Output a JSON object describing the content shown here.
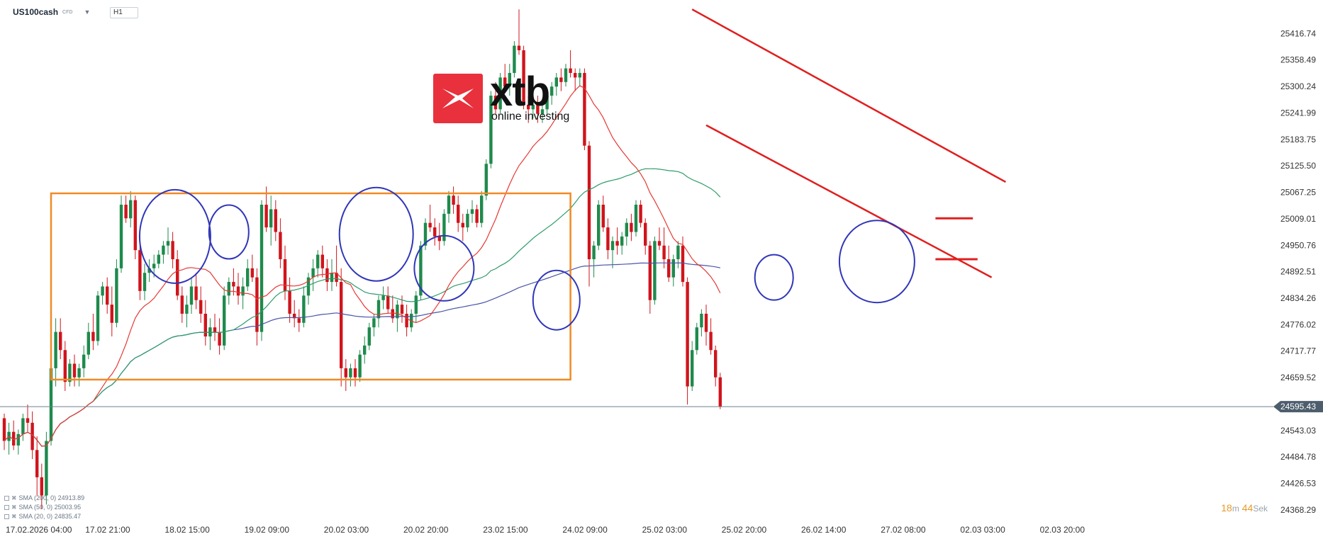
{
  "instrument": {
    "symbol": "US100cash",
    "type": "CFD",
    "timeframe": "H1"
  },
  "logo": {
    "word": "xtb",
    "tagline": "online investing"
  },
  "timer": {
    "minutes": "18",
    "min_unit": "m",
    "seconds": "44",
    "sec_unit": "Sek"
  },
  "indicators": [
    {
      "label": "SMA (200, 0) 24913.89",
      "color": "#4a55a8"
    },
    {
      "label": "SMA (50, 0) 25003.95",
      "color": "#2e9c6a"
    },
    {
      "label": "SMA (20, 0) 24835.47",
      "color": "#e53935"
    }
  ],
  "colors": {
    "up": "#1e8a4c",
    "down": "#d0141c",
    "channel": "#e01f1f",
    "box": "#f08a24",
    "circles": "#3036b8"
  },
  "chart_data": {
    "type": "candlestick",
    "ylim": [
      24340,
      25475
    ],
    "y_ticks": [
      "25416.74",
      "25358.49",
      "25300.24",
      "25241.99",
      "25183.75",
      "25125.50",
      "25067.25",
      "25009.01",
      "24950.76",
      "24892.51",
      "24834.26",
      "24776.02",
      "24717.77",
      "24659.52",
      "24543.03",
      "24484.78",
      "24426.53",
      "24368.29"
    ],
    "x_ticks": [
      "17.02.2026  04:00",
      "17.02  21:00",
      "18.02  15:00",
      "19.02  09:00",
      "20.02  03:00",
      "20.02  20:00",
      "23.02  15:00",
      "24.02  09:00",
      "25.02  03:00",
      "25.02  20:00",
      "26.02  14:00",
      "27.02  08:00",
      "02.03  03:00",
      "02.03  20:00"
    ],
    "x_tick_index": [
      0,
      17,
      34,
      51,
      68,
      85,
      102,
      119,
      136,
      153,
      170,
      187,
      204,
      221
    ],
    "current_price": {
      "label": "24595.43",
      "value": 24595.43
    },
    "candles": [
      [
        24570,
        24580,
        24500,
        24520
      ],
      [
        24520,
        24560,
        24490,
        24540
      ],
      [
        24540,
        24565,
        24500,
        24510
      ],
      [
        24510,
        24545,
        24490,
        24535
      ],
      [
        24535,
        24580,
        24520,
        24570
      ],
      [
        24570,
        24600,
        24540,
        24560
      ],
      [
        24560,
        24585,
        24480,
        24500
      ],
      [
        24500,
        24530,
        24400,
        24440
      ],
      [
        24440,
        24470,
        24370,
        24400
      ],
      [
        24400,
        24540,
        24380,
        24520
      ],
      [
        24520,
        24700,
        24510,
        24680
      ],
      [
        24680,
        24790,
        24640,
        24760
      ],
      [
        24760,
        24790,
        24700,
        24720
      ],
      [
        24720,
        24740,
        24630,
        24650
      ],
      [
        24650,
        24700,
        24640,
        24690
      ],
      [
        24690,
        24710,
        24640,
        24660
      ],
      [
        24660,
        24690,
        24640,
        24680
      ],
      [
        24680,
        24730,
        24660,
        24710
      ],
      [
        24710,
        24780,
        24700,
        24760
      ],
      [
        24760,
        24800,
        24720,
        24740
      ],
      [
        24740,
        24850,
        24730,
        24840
      ],
      [
        24840,
        24870,
        24820,
        24860
      ],
      [
        24860,
        24880,
        24800,
        24820
      ],
      [
        24820,
        24860,
        24750,
        24780
      ],
      [
        24780,
        24920,
        24770,
        24900
      ],
      [
        24900,
        25060,
        24890,
        25040
      ],
      [
        25040,
        25060,
        25000,
        25010
      ],
      [
        25010,
        25070,
        24990,
        25050
      ],
      [
        25050,
        25060,
        24920,
        24940
      ],
      [
        24940,
        24980,
        24830,
        24850
      ],
      [
        24850,
        24910,
        24830,
        24890
      ],
      [
        24890,
        24920,
        24870,
        24900
      ],
      [
        24900,
        24930,
        24880,
        24910
      ],
      [
        24910,
        24940,
        24900,
        24930
      ],
      [
        24930,
        24960,
        24910,
        24950
      ],
      [
        24950,
        24990,
        24930,
        24960
      ],
      [
        24960,
        24980,
        24900,
        24920
      ],
      [
        24920,
        24940,
        24830,
        24840
      ],
      [
        24840,
        24860,
        24780,
        24800
      ],
      [
        24800,
        24840,
        24770,
        24820
      ],
      [
        24820,
        24880,
        24800,
        24860
      ],
      [
        24860,
        24890,
        24810,
        24830
      ],
      [
        24830,
        24860,
        24780,
        24800
      ],
      [
        24800,
        24830,
        24730,
        24750
      ],
      [
        24750,
        24790,
        24720,
        24770
      ],
      [
        24770,
        24800,
        24740,
        24760
      ],
      [
        24760,
        24790,
        24710,
        24730
      ],
      [
        24730,
        24860,
        24720,
        24840
      ],
      [
        24840,
        24880,
        24820,
        24870
      ],
      [
        24870,
        24900,
        24840,
        24860
      ],
      [
        24860,
        24890,
        24820,
        24840
      ],
      [
        24840,
        24880,
        24810,
        24860
      ],
      [
        24860,
        24920,
        24850,
        24900
      ],
      [
        24900,
        24930,
        24870,
        24880
      ],
      [
        24880,
        24900,
        24730,
        24760
      ],
      [
        24760,
        25050,
        24740,
        25040
      ],
      [
        25040,
        25080,
        24980,
        24990
      ],
      [
        24990,
        25060,
        24950,
        25030
      ],
      [
        25030,
        25050,
        24960,
        24980
      ],
      [
        24980,
        25010,
        24900,
        24920
      ],
      [
        24920,
        24950,
        24830,
        24850
      ],
      [
        24850,
        24880,
        24780,
        24800
      ],
      [
        24800,
        24830,
        24770,
        24790
      ],
      [
        24790,
        24810,
        24760,
        24780
      ],
      [
        24780,
        24860,
        24770,
        24840
      ],
      [
        24840,
        24890,
        24820,
        24880
      ],
      [
        24880,
        24920,
        24850,
        24900
      ],
      [
        24900,
        24940,
        24880,
        24930
      ],
      [
        24930,
        24950,
        24880,
        24900
      ],
      [
        24900,
        24920,
        24850,
        24870
      ],
      [
        24870,
        24920,
        24850,
        24890
      ],
      [
        24890,
        24950,
        24860,
        24870
      ],
      [
        24870,
        24900,
        24640,
        24680
      ],
      [
        24680,
        24700,
        24630,
        24660
      ],
      [
        24660,
        24690,
        24640,
        24680
      ],
      [
        24680,
        24700,
        24640,
        24660
      ],
      [
        24660,
        24720,
        24650,
        24710
      ],
      [
        24710,
        24750,
        24690,
        24730
      ],
      [
        24730,
        24780,
        24720,
        24770
      ],
      [
        24770,
        24800,
        24750,
        24790
      ],
      [
        24790,
        24840,
        24770,
        24830
      ],
      [
        24830,
        24860,
        24810,
        24840
      ],
      [
        24840,
        24860,
        24800,
        24810
      ],
      [
        24810,
        24840,
        24780,
        24790
      ],
      [
        24790,
        24830,
        24760,
        24820
      ],
      [
        24820,
        24840,
        24780,
        24800
      ],
      [
        24800,
        24820,
        24750,
        24770
      ],
      [
        24770,
        24810,
        24760,
        24800
      ],
      [
        24800,
        24850,
        24780,
        24840
      ],
      [
        24840,
        24960,
        24830,
        24950
      ],
      [
        24950,
        25010,
        24940,
        25000
      ],
      [
        25000,
        25040,
        24980,
        24990
      ],
      [
        24990,
        25010,
        24950,
        24970
      ],
      [
        24970,
        25000,
        24940,
        24960
      ],
      [
        24960,
        25030,
        24950,
        25020
      ],
      [
        25020,
        25070,
        25000,
        25060
      ],
      [
        25060,
        25080,
        25020,
        25040
      ],
      [
        25040,
        25060,
        24980,
        25000
      ],
      [
        25000,
        25020,
        24960,
        24990
      ],
      [
        24990,
        25030,
        24980,
        25020
      ],
      [
        25020,
        25050,
        25000,
        25030
      ],
      [
        25030,
        25040,
        24990,
        25000
      ],
      [
        25000,
        25070,
        24990,
        25060
      ],
      [
        25060,
        25140,
        25050,
        25130
      ],
      [
        25130,
        25290,
        25120,
        25280
      ],
      [
        25280,
        25310,
        25240,
        25250
      ],
      [
        25250,
        25330,
        25240,
        25320
      ],
      [
        25320,
        25350,
        25290,
        25300
      ],
      [
        25300,
        25350,
        25280,
        25330
      ],
      [
        25330,
        25400,
        25320,
        25390
      ],
      [
        25390,
        25470,
        25370,
        25380
      ],
      [
        25380,
        25390,
        25250,
        25260
      ],
      [
        25260,
        25280,
        25220,
        25250
      ],
      [
        25250,
        25270,
        25230,
        25260
      ],
      [
        25260,
        25280,
        25220,
        25240
      ],
      [
        25240,
        25260,
        25220,
        25250
      ],
      [
        25250,
        25290,
        25240,
        25280
      ],
      [
        25280,
        25310,
        25260,
        25300
      ],
      [
        25300,
        25330,
        25280,
        25320
      ],
      [
        25320,
        25340,
        25290,
        25310
      ],
      [
        25310,
        25350,
        25300,
        25340
      ],
      [
        25340,
        25380,
        25320,
        25330
      ],
      [
        25330,
        25340,
        25290,
        25320
      ],
      [
        25320,
        25340,
        25300,
        25330
      ],
      [
        25330,
        25340,
        25160,
        25170
      ],
      [
        25170,
        25180,
        24860,
        24920
      ],
      [
        24920,
        24960,
        24880,
        24950
      ],
      [
        24950,
        25050,
        24940,
        25040
      ],
      [
        25040,
        25060,
        24980,
        24990
      ],
      [
        24990,
        25010,
        24920,
        24940
      ],
      [
        24940,
        24970,
        24900,
        24960
      ],
      [
        24960,
        24990,
        24930,
        24950
      ],
      [
        24950,
        24980,
        24930,
        24970
      ],
      [
        24970,
        25010,
        24950,
        25000
      ],
      [
        25000,
        25020,
        24960,
        24980
      ],
      [
        24980,
        25050,
        24970,
        25040
      ],
      [
        25040,
        25050,
        24990,
        25000
      ],
      [
        25000,
        25010,
        24930,
        24950
      ],
      [
        24950,
        24960,
        24800,
        24830
      ],
      [
        24830,
        24970,
        24820,
        24960
      ],
      [
        24960,
        24990,
        24940,
        24950
      ],
      [
        24950,
        24990,
        24900,
        24920
      ],
      [
        24920,
        24950,
        24870,
        24880
      ],
      [
        24880,
        24930,
        24860,
        24920
      ],
      [
        24920,
        24960,
        24900,
        24950
      ],
      [
        24950,
        24970,
        24860,
        24870
      ],
      [
        24870,
        24880,
        24600,
        24640
      ],
      [
        24640,
        24740,
        24630,
        24720
      ],
      [
        24720,
        24780,
        24710,
        24770
      ],
      [
        24770,
        24810,
        24750,
        24800
      ],
      [
        24800,
        24820,
        24730,
        24760
      ],
      [
        24760,
        24790,
        24710,
        24720
      ],
      [
        24720,
        24730,
        24640,
        24660
      ],
      [
        24660,
        24670,
        24590,
        24595
      ]
    ]
  }
}
